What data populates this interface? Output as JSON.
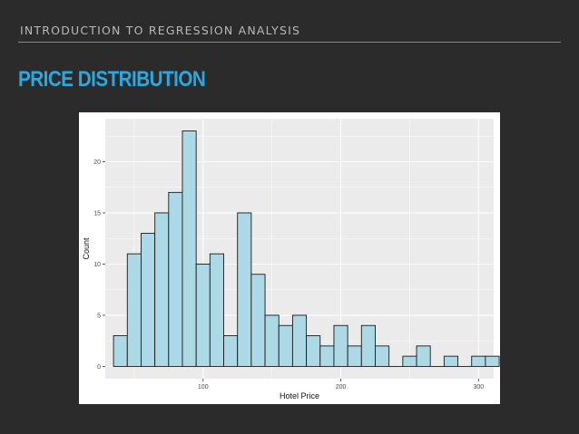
{
  "header": {
    "course_title": "INTRODUCTION TO REGRESSION ANALYSIS",
    "page_title": "PRICE DISTRIBUTION"
  },
  "colors": {
    "background": "#2b2b2b",
    "title_accent": "#2aa8e0",
    "bar_fill": "#add8e6",
    "bar_stroke": "#1a1a1a",
    "panel_background": "#ebebeb",
    "gridline": "#ffffff"
  },
  "chart_data": {
    "type": "bar",
    "title": "",
    "xlabel": "Hotel Price",
    "ylabel": "Count",
    "xlim": [
      29,
      311
    ],
    "ylim": [
      -1.2,
      24.2
    ],
    "xticks": [
      100,
      200,
      300
    ],
    "yticks": [
      0,
      5,
      10,
      15,
      20
    ],
    "grid": true,
    "legend": "none",
    "bins": [
      {
        "start": 35,
        "end": 45,
        "count": 3
      },
      {
        "start": 45,
        "end": 55,
        "count": 11
      },
      {
        "start": 55,
        "end": 65,
        "count": 13
      },
      {
        "start": 65,
        "end": 75,
        "count": 15
      },
      {
        "start": 75,
        "end": 85,
        "count": 17
      },
      {
        "start": 85,
        "end": 95,
        "count": 23
      },
      {
        "start": 95,
        "end": 105,
        "count": 10
      },
      {
        "start": 105,
        "end": 115,
        "count": 11
      },
      {
        "start": 115,
        "end": 125,
        "count": 3
      },
      {
        "start": 125,
        "end": 135,
        "count": 15
      },
      {
        "start": 135,
        "end": 145,
        "count": 9
      },
      {
        "start": 145,
        "end": 155,
        "count": 5
      },
      {
        "start": 155,
        "end": 165,
        "count": 4
      },
      {
        "start": 165,
        "end": 175,
        "count": 5
      },
      {
        "start": 175,
        "end": 185,
        "count": 3
      },
      {
        "start": 185,
        "end": 195,
        "count": 2
      },
      {
        "start": 195,
        "end": 205,
        "count": 4
      },
      {
        "start": 205,
        "end": 215,
        "count": 2
      },
      {
        "start": 215,
        "end": 225,
        "count": 4
      },
      {
        "start": 225,
        "end": 235,
        "count": 2
      },
      {
        "start": 235,
        "end": 245,
        "count": 0
      },
      {
        "start": 245,
        "end": 255,
        "count": 1
      },
      {
        "start": 255,
        "end": 265,
        "count": 2
      },
      {
        "start": 265,
        "end": 275,
        "count": 0
      },
      {
        "start": 275,
        "end": 285,
        "count": 1
      },
      {
        "start": 285,
        "end": 295,
        "count": 0
      },
      {
        "start": 295,
        "end": 305,
        "count": 1
      },
      {
        "start": 305,
        "end": 315,
        "count": 1
      },
      {
        "start": 315,
        "end": 325,
        "count": 0
      },
      {
        "start": 325,
        "end": 335,
        "count": 1
      }
    ]
  }
}
